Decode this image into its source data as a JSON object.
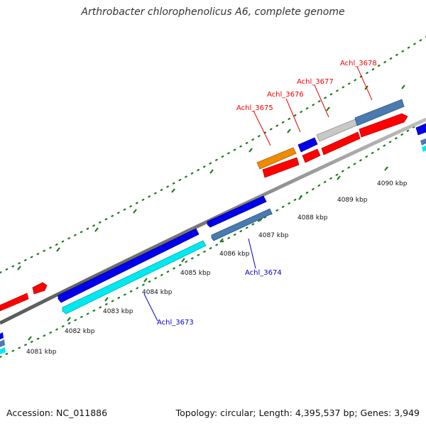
{
  "title": "Arthrobacter chlorophenolicus A6, complete genome",
  "footer": {
    "accession": "Accession: NC_011886",
    "summary": "Topology: circular; Length: 4,395,537 bp; Genes: 3,949"
  },
  "colors": {
    "forward_red": "#ff0000",
    "reverse_blue": "#0000ee",
    "steel_blue": "#4a7aae",
    "cyan": "#00e8f0",
    "orange": "#f08a00",
    "gray_gene": "#c8c8c8",
    "backbone": "#8a8a8a",
    "ticks": "#1a7a1a",
    "label_red": "#ee0000",
    "label_blue": "#0000cc"
  },
  "kbp_ticks": [
    "4081 kbp",
    "4082 kbp",
    "4083 kbp",
    "4084 kbp",
    "4085 kbp",
    "4086 kbp",
    "4087 kbp",
    "4088 kbp",
    "4089 kbp",
    "4090 kbp"
  ],
  "gene_labels": {
    "achl_3673": "Achl_3673",
    "achl_3674": "Achl_3674",
    "achl_3675": "Achl_3675",
    "achl_3676": "Achl_3676",
    "achl_3677": "Achl_3677",
    "achl_3678": "Achl_3678"
  }
}
